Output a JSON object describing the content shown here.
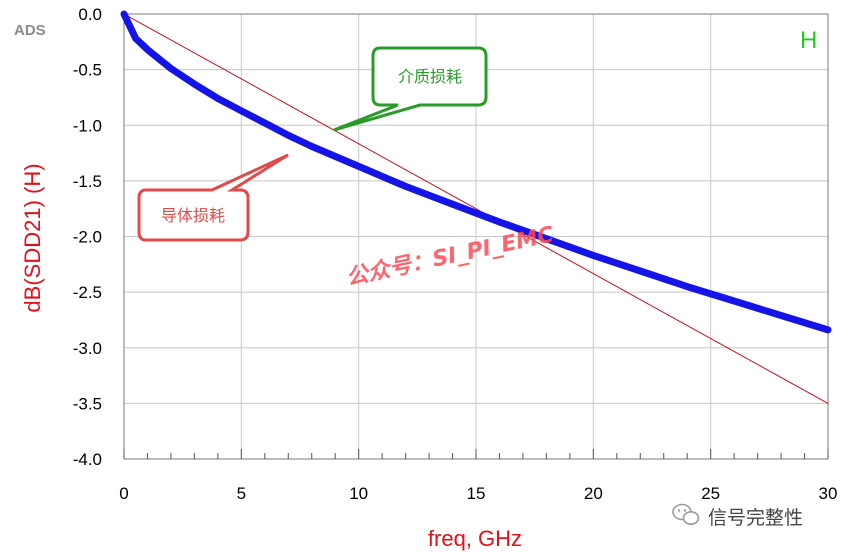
{
  "chart_data": {
    "type": "line",
    "title": "",
    "xlabel": "freq, GHz",
    "ylabel": "dB(SDD21)  (H)",
    "xlim": [
      0,
      30
    ],
    "ylim": [
      -4.0,
      0.0
    ],
    "x_ticks": [
      "0",
      "5",
      "10",
      "15",
      "20",
      "25",
      "30"
    ],
    "y_ticks": [
      "0.0",
      "-0.5",
      "-1.0",
      "-1.5",
      "-2.0",
      "-2.5",
      "-3.0",
      "-3.5",
      "-4.0"
    ],
    "grid": true,
    "series": [
      {
        "name": "",
        "color": "#1414e6",
        "x": [
          0,
          0.5,
          1,
          2,
          3,
          4,
          5,
          6,
          7,
          8,
          9,
          10,
          12,
          14,
          16,
          18,
          20,
          22,
          24,
          26,
          28,
          30
        ],
        "y": [
          0,
          -0.22,
          -0.32,
          -0.49,
          -0.63,
          -0.76,
          -0.87,
          -0.98,
          -1.09,
          -1.19,
          -1.28,
          -1.37,
          -1.55,
          -1.71,
          -1.87,
          -2.02,
          -2.17,
          -2.31,
          -2.45,
          -2.58,
          -2.71,
          -2.84
        ]
      },
      {
        "name": "",
        "color": "#c0101c",
        "x": [
          0,
          30
        ],
        "y": [
          0,
          -3.5
        ]
      }
    ]
  },
  "labels": {
    "ads": "ADS",
    "trace_name": "H",
    "dielectric_loss": "介质损耗",
    "conductor_loss": "导体损耗",
    "watermark": "公众号：SI_PI_EMC",
    "brand": "信号完整性"
  },
  "colors": {
    "dielectric_callout": "#2a9a2a",
    "conductor_callout": "#e04a4a"
  }
}
